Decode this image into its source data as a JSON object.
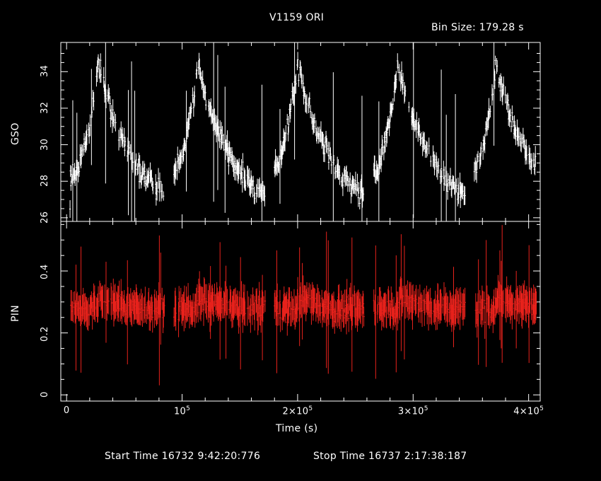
{
  "title": "V1159 ORI",
  "bin_size": "Bin Size: 179.28 s",
  "footer": {
    "start": "Start Time 16732  9:42:20:776",
    "stop": "Stop Time 16737  2:17:38:187"
  },
  "chart_data": [
    {
      "type": "scatter",
      "name_panel": "top",
      "ylabel": "GSO",
      "xlim": [
        -5000,
        410000
      ],
      "ylim": [
        25.8,
        35.6
      ],
      "yticks": [
        26,
        28,
        30,
        32,
        34
      ],
      "ytick_labels": [
        "26",
        "28",
        "30",
        "32",
        "34"
      ],
      "color": "#ffffff",
      "period_s": 86400,
      "segments": [
        [
          3000,
          85000
        ],
        [
          93000,
          172000
        ],
        [
          180000,
          258000
        ],
        [
          266000,
          345000
        ],
        [
          353000,
          407000
        ]
      ],
      "peak_times": [
        28000,
        114000,
        200000,
        287000,
        372000
      ],
      "peak_value": 34.5,
      "base_value": 26.3,
      "decay_s": 28000,
      "rise_start_value": 28.3
    },
    {
      "type": "scatter",
      "name_panel": "bottom",
      "ylabel": "PIN",
      "xlabel": "Time (s)",
      "xlim": [
        -5000,
        410000
      ],
      "ylim": [
        -0.02,
        0.56
      ],
      "yticks": [
        0,
        0.2,
        0.4
      ],
      "ytick_labels": [
        "0",
        "0.2",
        "0.4"
      ],
      "xticks": [
        0,
        100000,
        200000,
        300000,
        400000
      ],
      "xtick_labels": [
        "0",
        "10^5",
        "2×10^5",
        "3×10^5",
        "4×10^5"
      ],
      "color": "#e8221c",
      "mean_value": 0.28,
      "typical_error": 0.045
    }
  ]
}
